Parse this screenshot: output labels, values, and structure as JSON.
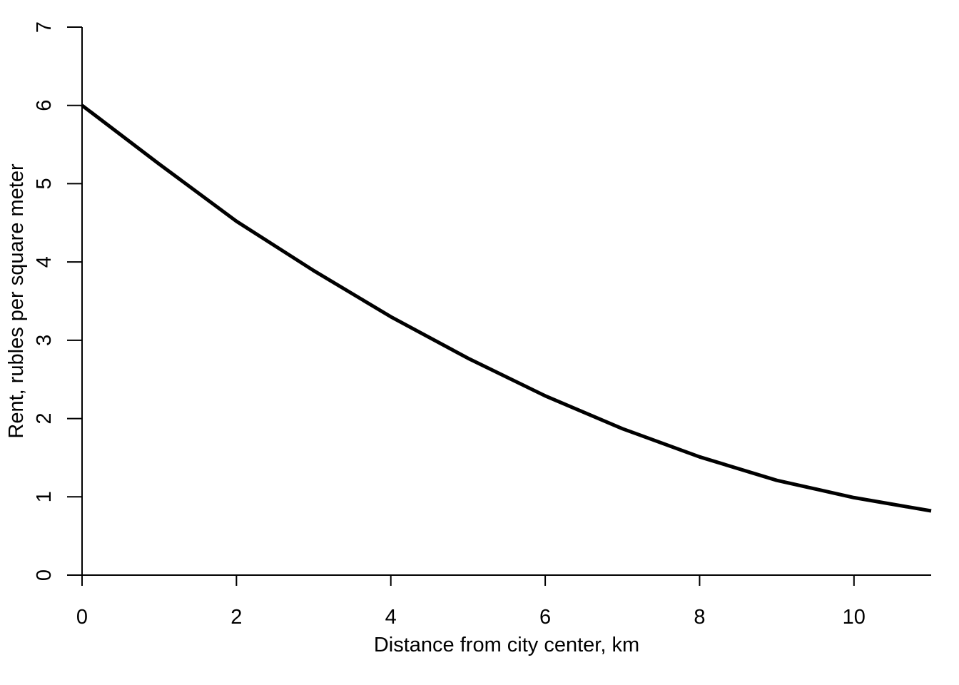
{
  "chart_data": {
    "type": "line",
    "title": "",
    "xlabel": "Distance from city center, km",
    "ylabel": "Rent, rubles per square meter",
    "xlim": [
      0,
      11
    ],
    "ylim": [
      0,
      7
    ],
    "x_ticks": [
      0,
      2,
      4,
      6,
      8,
      10
    ],
    "x_tick_labels": [
      "0",
      "2",
      "4",
      "6",
      "8",
      "10"
    ],
    "y_ticks": [
      0,
      1,
      2,
      3,
      4,
      5,
      6,
      7
    ],
    "y_tick_labels": [
      "0",
      "1",
      "2",
      "3",
      "4",
      "5",
      "6",
      "7"
    ],
    "grid": false,
    "legend": "none",
    "line_color": "#000000",
    "series": [
      {
        "x": [
          0,
          1,
          2,
          3,
          4,
          5,
          6,
          7,
          8,
          9,
          10,
          11
        ],
        "y": [
          6.0,
          5.25,
          4.52,
          3.89,
          3.3,
          2.77,
          2.29,
          1.87,
          1.51,
          1.21,
          0.99,
          0.82
        ]
      }
    ]
  }
}
